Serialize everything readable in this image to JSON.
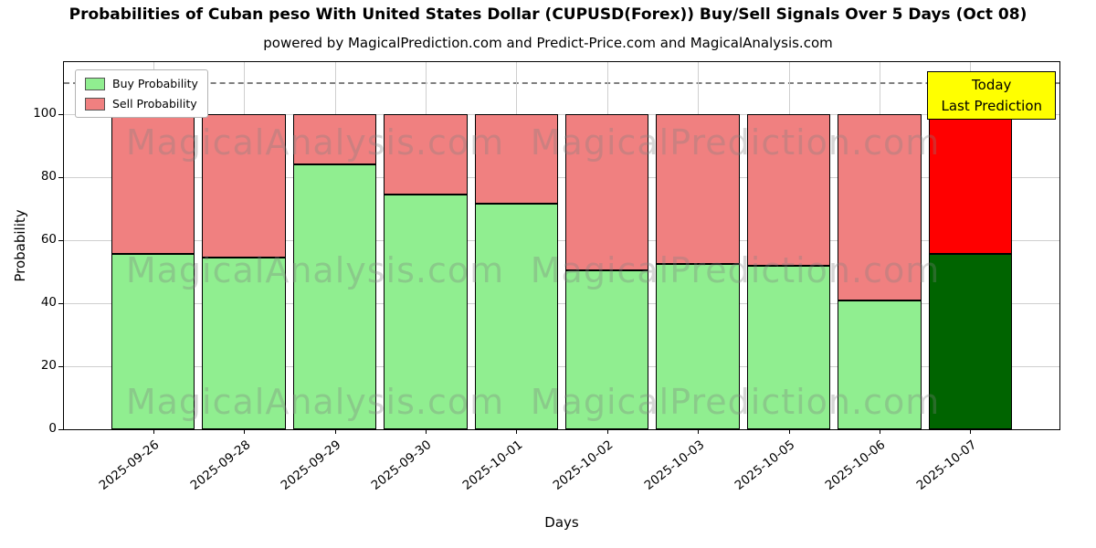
{
  "title": "Probabilities of Cuban peso With United States Dollar (CUPUSD(Forex)) Buy/Sell Signals Over 5 Days (Oct 08)",
  "subtitle": "powered by MagicalPrediction.com and Predict-Price.com and MagicalAnalysis.com",
  "axes": {
    "xlabel": "Days",
    "ylabel": "Probability"
  },
  "legend": [
    {
      "label": "Buy Probability",
      "color": "#90ee90"
    },
    {
      "label": "Sell Probability",
      "color": "#f08080"
    }
  ],
  "annotation_box": {
    "lines": [
      "Today",
      "Last Prediction"
    ],
    "bg_color": "#ffff00"
  },
  "watermark": {
    "left": "MagicalAnalysis.com",
    "right": "MagicalPrediction.com"
  },
  "chart_data": {
    "type": "bar",
    "stacked": true,
    "title": "Probabilities of Cuban peso With United States Dollar (CUPUSD(Forex)) Buy/Sell Signals Over 5 Days (Oct 08)",
    "xlabel": "Days",
    "ylabel": "Probability",
    "categories": [
      "2025-09-26",
      "2025-09-28",
      "2025-09-29",
      "2025-09-30",
      "2025-10-01",
      "2025-10-02",
      "2025-10-03",
      "2025-10-05",
      "2025-10-06",
      "2025-10-07"
    ],
    "series": [
      {
        "name": "Buy Probability",
        "color": "#90ee90",
        "last_bar_color": "#006400",
        "values": [
          55.5,
          54.5,
          84,
          74.5,
          71.5,
          50.5,
          52.5,
          52,
          41,
          55.5
        ]
      },
      {
        "name": "Sell Probability",
        "color": "#f08080",
        "last_bar_color": "#ff0000",
        "values": [
          44.5,
          45.5,
          16,
          25.5,
          28.5,
          49.5,
          47.5,
          48,
          59,
          44.5
        ]
      }
    ],
    "ylim": [
      0,
      116.5
    ],
    "yticks": [
      0,
      20,
      40,
      60,
      80,
      100
    ],
    "dashed_guide_y": 110,
    "grid": true,
    "legend_position": "upper left",
    "annotation": "Today Last Prediction (last bar highlighted dark green / red)"
  }
}
